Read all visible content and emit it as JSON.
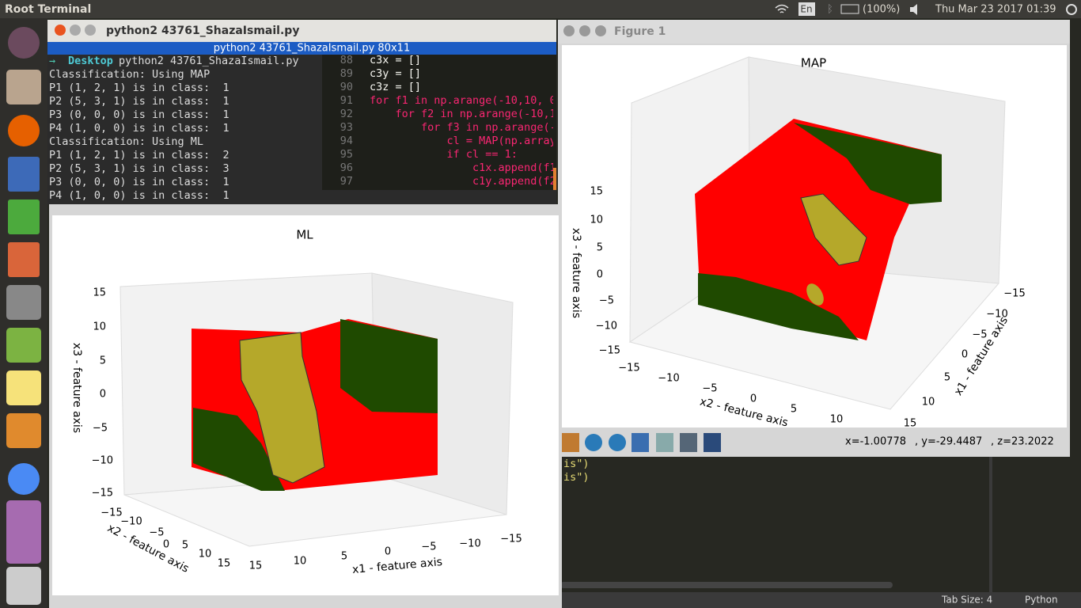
{
  "top_bar": {
    "title": "Root Terminal",
    "keyboard": "En",
    "battery": "(100%)",
    "clock": "Thu Mar 23 2017 01:39"
  },
  "terminal": {
    "window_title": "python2 43761_ShazaIsmail.py",
    "tab_title": "python2 43761_ShazaIsmail.py 80x11",
    "prompt_dir": "Desktop",
    "command": "python2 43761_ShazaIsmail.py",
    "output": [
      "Classification: Using MAP",
      "P1 (1, 2, 1) is in class:  1",
      "P2 (5, 3, 1) is in class:  1",
      "P3 (0, 0, 0) is in class:  1",
      "P4 (1, 0, 0) is in class:  1",
      "Classification: Using ML",
      "P1 (1, 2, 1) is in class:  2",
      "P2 (5, 3, 1) is in class:  3",
      "P3 (0, 0, 0) is in class:  1",
      "P4 (1, 0, 0) is in class:  1"
    ]
  },
  "editor": {
    "line_numbers": [
      "88",
      "89",
      "90",
      "91",
      "92",
      "93",
      "94",
      "95",
      "96",
      "97"
    ],
    "code": [
      "c3x = []",
      "c3y = []",
      "c3z = []",
      "for f1 in np.arange(-10,10, 0.",
      "    for f2 in np.arange(-10,1",
      "        for f3 in np.arange(-1",
      "            cl = MAP(np.array",
      "            if cl == 1:",
      "                c1x.append(f1",
      "                c1y.append(f2"
    ],
    "lower_code": [
      "is\")",
      "is\")"
    ],
    "status": {
      "tab_size": "Tab Size: 4",
      "language": "Python"
    }
  },
  "figure_1": {
    "window_title": "Figure 1",
    "plot_title": "MAP",
    "z_label": "x3 - feature axis",
    "x2_label": "x2 - feature axis",
    "x1_label": "x1 - feature axis",
    "z_ticks": [
      "15",
      "10",
      "5",
      "0",
      "−5",
      "−10",
      "−15"
    ],
    "x2_ticks": [
      "−15",
      "−10",
      "−5",
      "0",
      "5",
      "10"
    ],
    "x1_ticks": [
      "−15",
      "−10",
      "−5",
      "0",
      "5",
      "10",
      "15"
    ],
    "coordinates": [
      "x=-1.00778",
      ", y=-29.4487",
      ", z=23.2022"
    ]
  },
  "figure_2": {
    "plot_title": "ML",
    "z_label": "x3 - feature axis",
    "x2_label": "x2 - feature axis",
    "x1_label": "x1 - feature axis",
    "z_ticks": [
      "15",
      "10",
      "5",
      "0",
      "−5",
      "−10",
      "−15"
    ],
    "x2_ticks": [
      "−15",
      "−10",
      "−5",
      "0",
      "5",
      "10",
      "15"
    ],
    "x1_ticks": [
      "15",
      "10",
      "5",
      "0",
      "−5",
      "−10",
      "−15"
    ]
  }
}
